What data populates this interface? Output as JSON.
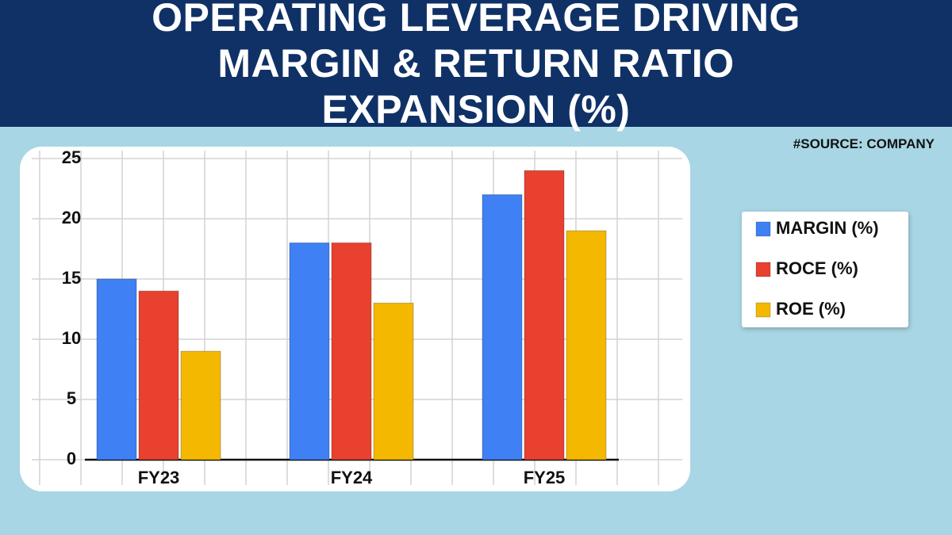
{
  "chart_data": {
    "type": "bar",
    "title": "OPERATING LEVERAGE DRIVING MARGIN & RETURN RATIO EXPANSION (%)",
    "source": "#SOURCE: COMPANY",
    "categories": [
      "FY23",
      "FY24",
      "FY25"
    ],
    "series": [
      {
        "name": "MARGIN (%)",
        "color": "#3f80f4",
        "values": [
          15,
          18,
          22
        ]
      },
      {
        "name": "ROCE (%)",
        "color": "#e8412f",
        "values": [
          14,
          18,
          24
        ]
      },
      {
        "name": "ROE (%)",
        "color": "#f5b800",
        "values": [
          9,
          13,
          19
        ]
      }
    ],
    "ylim": [
      0,
      25
    ],
    "yticks": [
      0,
      5,
      10,
      15,
      20,
      25
    ],
    "grid": true,
    "legend": "right"
  }
}
